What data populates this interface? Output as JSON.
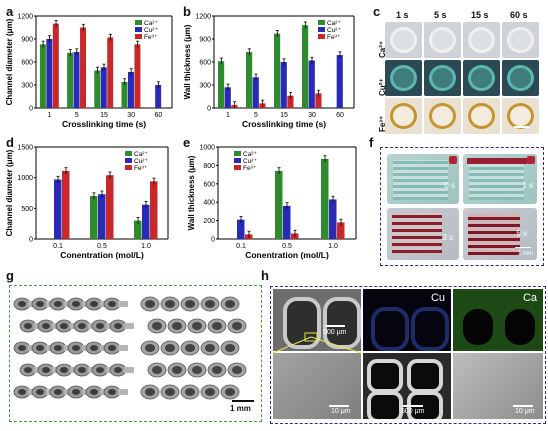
{
  "panel_letters": {
    "a": "a",
    "b": "b",
    "c": "c",
    "d": "d",
    "e": "e",
    "f": "f",
    "g": "g",
    "h": "h"
  },
  "colors": {
    "ca": "#2e8b2e",
    "cu": "#2a2ab8",
    "fe": "#c8282a",
    "panel_f_border": "#2b2b8f",
    "panel_g_border": "#3aa63a",
    "panel_h_border": "#2b2b8f"
  },
  "chart_data": [
    {
      "id": "a",
      "type": "bar",
      "ylabel": "Channel diameter (μm)",
      "xlabel": "Crosslinking time (s)",
      "categories": [
        "1",
        "5",
        "15",
        "30",
        "60"
      ],
      "ylim": [
        0,
        1200
      ],
      "yticks": [
        0,
        300,
        600,
        900,
        1200
      ],
      "series": [
        {
          "name": "Ca²⁺",
          "values": [
            830,
            720,
            490,
            340,
            null
          ]
        },
        {
          "name": "Cu²⁺",
          "values": [
            900,
            730,
            530,
            470,
            300
          ]
        },
        {
          "name": "Fe³⁺",
          "values": [
            1100,
            1050,
            920,
            830,
            null
          ]
        }
      ]
    },
    {
      "id": "b",
      "type": "bar",
      "ylabel": "Wall thickness (μm)",
      "xlabel": "Crosslinking time (s)",
      "categories": [
        "1",
        "5",
        "15",
        "30",
        "60"
      ],
      "ylim": [
        0,
        1200
      ],
      "yticks": [
        0,
        300,
        600,
        900,
        1200
      ],
      "series": [
        {
          "name": "Ca²⁺",
          "values": [
            610,
            730,
            970,
            1080,
            null
          ]
        },
        {
          "name": "Cu²⁺",
          "values": [
            270,
            400,
            600,
            620,
            690
          ]
        },
        {
          "name": "Fe³⁺",
          "values": [
            40,
            60,
            160,
            190,
            null
          ]
        }
      ]
    },
    {
      "id": "d",
      "type": "bar",
      "ylabel": "Channel diameter (μm)",
      "xlabel": "Conentration (mol/L)",
      "categories": [
        "0.1",
        "0.5",
        "1.0"
      ],
      "ylim": [
        0,
        1500
      ],
      "yticks": [
        0,
        500,
        1000,
        1500
      ],
      "series": [
        {
          "name": "Ca²⁺",
          "values": [
            null,
            700,
            300
          ]
        },
        {
          "name": "Cu²⁺",
          "values": [
            970,
            730,
            560
          ]
        },
        {
          "name": "Fe³⁺",
          "values": [
            1110,
            1040,
            940
          ]
        }
      ]
    },
    {
      "id": "e",
      "type": "bar",
      "ylabel": "Wall thickness (μm)",
      "xlabel": "Conentration (mol/L)",
      "categories": [
        "0.1",
        "0.5",
        "1.0"
      ],
      "ylim": [
        0,
        1000
      ],
      "yticks": [
        0,
        200,
        400,
        600,
        800,
        1000
      ],
      "series": [
        {
          "name": "Ca²⁺",
          "values": [
            null,
            740,
            870
          ]
        },
        {
          "name": "Cu²⁺",
          "values": [
            210,
            360,
            430
          ]
        },
        {
          "name": "Fe³⁺",
          "values": [
            50,
            60,
            180
          ]
        }
      ]
    }
  ],
  "panel_c": {
    "col_labels": [
      "1 s",
      "5 s",
      "15 s",
      "60 s"
    ],
    "row_labels": [
      "Ca²⁺",
      "Cu²⁺",
      "Fe³⁺"
    ]
  },
  "panel_f": {
    "labels": [
      "0 s",
      "1 s",
      "3 s",
      "5 s"
    ],
    "scale": "1 mm"
  },
  "panel_g": {
    "scale": "1 mm"
  },
  "panel_h": {
    "labels": {
      "cu": "Cu",
      "ca": "Ca"
    },
    "scale_500a": "500 μm",
    "scale_10a": "10 μm",
    "scale_500b": "500 μm",
    "scale_10b": "10 μm"
  }
}
